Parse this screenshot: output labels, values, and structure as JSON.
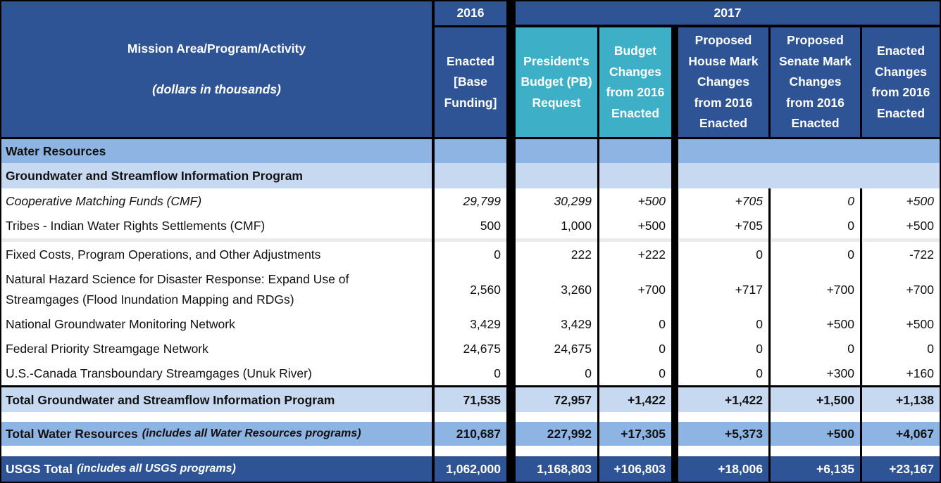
{
  "header": {
    "title": "Mission Area/Program/Activity",
    "subtitle": "(dollars in thousands)",
    "year_2016": "2016",
    "year_2017": "2017",
    "col_enacted_2016": "Enacted [Base Funding]",
    "col_pb_request": "President's Budget (PB) Request",
    "col_budget_changes": "Budget Changes from 2016 Enacted",
    "col_house_mark": "Proposed House Mark Changes from 2016 Enacted",
    "col_senate_mark": "Proposed Senate Mark Changes from 2016 Enacted",
    "col_enacted_changes": "Enacted Changes from 2016 Enacted"
  },
  "sections": {
    "water_resources": "Water Resources",
    "program": "Groundwater and Streamflow Information Program"
  },
  "rows": [
    {
      "label": "Cooperative Matching Funds (CMF)",
      "v": [
        "29,799",
        "30,299",
        "+500",
        "+705",
        "0",
        "+500"
      ]
    },
    {
      "label": "Tribes - Indian Water Rights Settlements (CMF)",
      "v": [
        "500",
        "1,000",
        "+500",
        "+705",
        "0",
        "+500"
      ]
    },
    {
      "label": "Fixed Costs, Program Operations, and Other Adjustments",
      "v": [
        "0",
        "222",
        "+222",
        "0",
        "0",
        "-722"
      ]
    },
    {
      "label": "Natural Hazard Science for Disaster Response: Expand Use of Streamgages (Flood Inundation Mapping and RDGs)",
      "v": [
        "2,560",
        "3,260",
        "+700",
        "+717",
        "+700",
        "+700"
      ]
    },
    {
      "label": "National Groundwater Monitoring Network",
      "v": [
        "3,429",
        "3,429",
        "0",
        "0",
        "+500",
        "+500"
      ]
    },
    {
      "label": "Federal Priority Streamgage Network",
      "v": [
        "24,675",
        "24,675",
        "0",
        "0",
        "0",
        "0"
      ]
    },
    {
      "label": "U.S.-Canada Transboundary Streamgages (Unuk River)",
      "v": [
        "0",
        "0",
        "0",
        "0",
        "+300",
        "+160"
      ]
    }
  ],
  "totals": [
    {
      "label": "Total Groundwater and Streamflow Information Program",
      "note": "",
      "v": [
        "71,535",
        "72,957",
        "+1,422",
        "+1,422",
        "+1,500",
        "+1,138"
      ]
    },
    {
      "label": "Total Water Resources",
      "note": "(includes all Water Resources programs)",
      "v": [
        "210,687",
        "227,992",
        "+17,305",
        "+5,373",
        "+500",
        "+4,067"
      ]
    },
    {
      "label": "USGS Total",
      "note": "(includes all USGS programs)",
      "v": [
        "1,062,000",
        "1,168,803",
        "+106,803",
        "+18,006",
        "+6,135",
        "+23,167"
      ]
    }
  ]
}
